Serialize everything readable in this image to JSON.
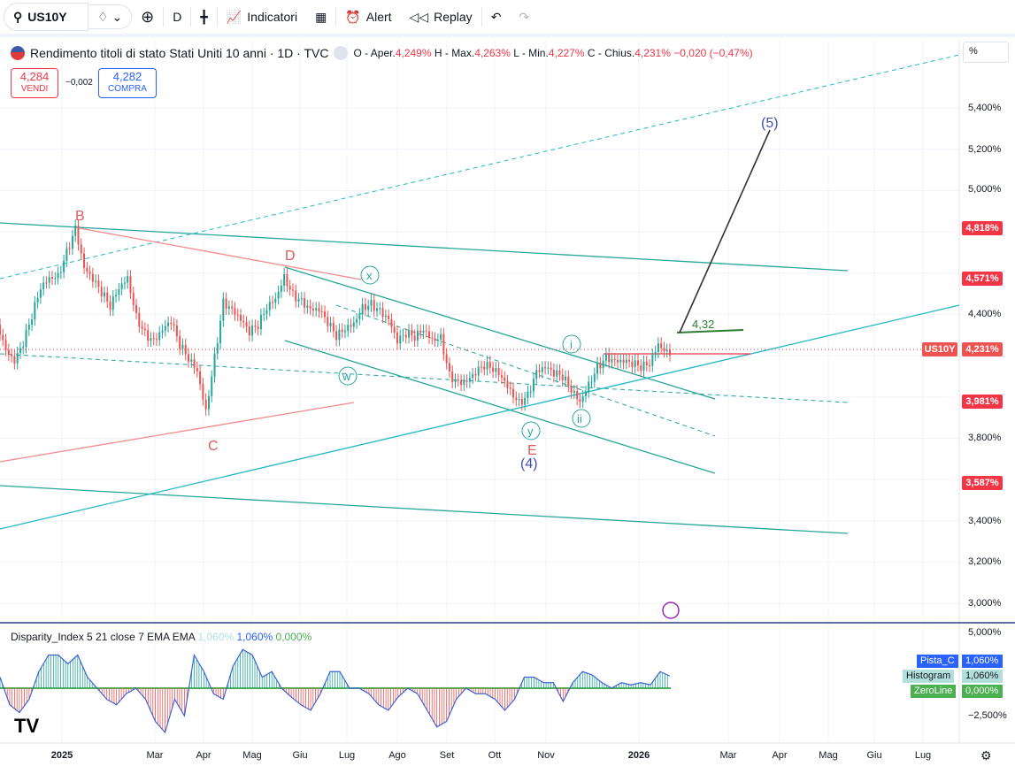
{
  "toolbar": {
    "symbol": "US10Y",
    "interval": "D",
    "indicators": "Indicatori",
    "alert": "Alert",
    "replay": "Replay"
  },
  "legend": {
    "title": "Rendimento titoli di stato Stati Uniti 10 anni · 1D · TVC",
    "o_label": "O - Aper.",
    "o": "4,249%",
    "h_label": "H - Max.",
    "h": "4,263%",
    "l_label": "L - Min.",
    "l": "4,227%",
    "c_label": "C - Chius.",
    "c": "4,231%",
    "change": "−0,020 (−0,47%)"
  },
  "trade": {
    "sell_price": "4,284",
    "sell_label": "VENDI",
    "spread": "−0,002",
    "buy_price": "4,282",
    "buy_label": "COMPRA"
  },
  "axis": {
    "unit": "%",
    "ticks": [
      "5,400%",
      "5,200%",
      "5,000%",
      "4,400%",
      "3,800%",
      "3,400%",
      "3,200%",
      "3,000%"
    ],
    "tags": [
      "4,818%",
      "4,571%",
      "3,981%",
      "3,587%"
    ],
    "last_symbol": "US10Y",
    "last": "4,231%"
  },
  "waves": {
    "B": "B",
    "C": "C",
    "D": "D",
    "E": "E",
    "w4": "(4)",
    "w5": "(5)",
    "i": "i",
    "ii": "ii",
    "x": "x",
    "y": "y",
    "w": "w",
    "level": "4,32"
  },
  "xaxis": [
    "2025",
    "Mar",
    "Apr",
    "Mag",
    "Giu",
    "Lug",
    "Ago",
    "Set",
    "Ott",
    "Nov",
    "2026",
    "Mar",
    "Apr",
    "Mag",
    "Giu",
    "Lug"
  ],
  "price": [
    4.35,
    4.2,
    4.15,
    4.25,
    4.4,
    4.55,
    4.6,
    4.6,
    4.7,
    4.8,
    4.6,
    4.55,
    4.5,
    4.45,
    4.55,
    4.6,
    4.4,
    4.3,
    4.25,
    4.3,
    4.35,
    4.25,
    4.2,
    4.15,
    3.95,
    4.2,
    4.45,
    4.4,
    4.35,
    4.3,
    4.35,
    4.45,
    4.5,
    4.6,
    4.5,
    4.45,
    4.4,
    4.4,
    4.35,
    4.3,
    4.35,
    4.38,
    4.45,
    4.45,
    4.4,
    4.35,
    4.25,
    4.3,
    4.3,
    4.35,
    4.3,
    4.3,
    4.1,
    4.05,
    4.05,
    4.1,
    4.15,
    4.15,
    4.12,
    4.05,
    3.98,
    4.0,
    4.1,
    4.12,
    4.1,
    4.1,
    4.05,
    4.0,
    4.08,
    4.15,
    4.18,
    4.15,
    4.15,
    4.15,
    4.15,
    4.18,
    4.28,
    4.23
  ],
  "indicator": {
    "title": "Disparity_Index 5 21 close 7 EMA EMA",
    "v1": "1,060%",
    "v2": "1,060%",
    "v3": "0,000%",
    "axis_top": "5,000%",
    "axis_bottom": "−2,500%",
    "tags": [
      {
        "name": "Pista_C",
        "value": "1,060%"
      },
      {
        "name": "Histogram",
        "value": "1,060%"
      },
      {
        "name": "ZeroLine",
        "value": "0,000%"
      }
    ],
    "values": [
      1,
      -1.5,
      -2.2,
      -1,
      1.5,
      3,
      3,
      2.2,
      3,
      1,
      0,
      -1,
      -1.5,
      -0.5,
      0,
      -1,
      -3,
      -4,
      -1,
      -2.5,
      3,
      1.5,
      -0.5,
      -1,
      2,
      3.5,
      3,
      1,
      1.5,
      0,
      -0.8,
      -1.5,
      -2,
      -0.5,
      1.5,
      1.5,
      0,
      0,
      -0.5,
      -1.5,
      -2,
      -0.8,
      0,
      -0.5,
      -2,
      -3.5,
      -3,
      -1,
      0,
      -0.5,
      -0.5,
      -1,
      -2,
      -1,
      1,
      1,
      0.5,
      0.5,
      -1.2,
      0.5,
      1.5,
      1.2,
      0.5,
      0,
      0.5,
      0.3,
      0.5,
      0.3,
      1.5,
      1.1
    ]
  },
  "colors": {
    "up": "#26a69a",
    "down": "#ef5350",
    "accent": "#2962ff"
  }
}
